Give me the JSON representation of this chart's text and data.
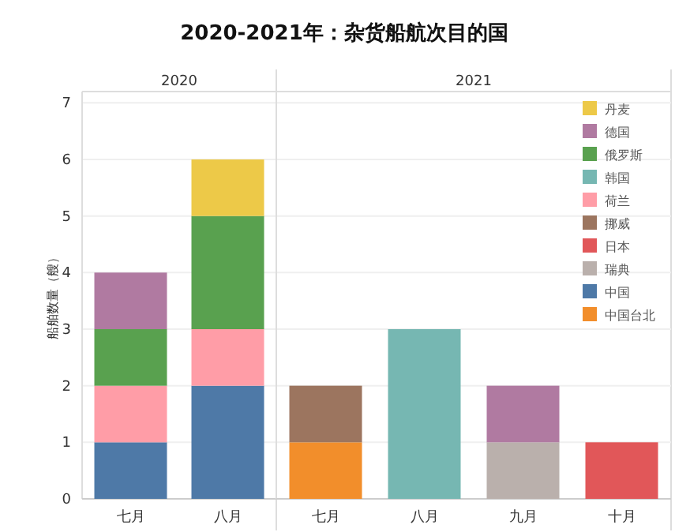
{
  "chart_data": [
    {
      "type": "bar",
      "title": "2020-2021年：杂货船航次目的国",
      "subtitle": "2020",
      "ylabel": "船舶数量（艘）",
      "categories": [
        "七月",
        "八月"
      ],
      "stacked": true,
      "ylim": [
        0,
        7.2
      ],
      "yticks": [
        0,
        1,
        2,
        3,
        4,
        5,
        6,
        7
      ],
      "grid": "y",
      "legend": false,
      "series": [
        {
          "color": "#4e79a7",
          "values": [
            1,
            2
          ]
        },
        {
          "color": "#ff9da7",
          "values": [
            1,
            1
          ]
        },
        {
          "color": "#59a14f",
          "values": [
            1,
            2
          ]
        },
        {
          "color": "#b07aa1",
          "values": [
            1,
            null
          ]
        },
        {
          "color": "#edc948",
          "values": [
            null,
            1
          ]
        }
      ]
    },
    {
      "type": "bar",
      "subtitle": "2021",
      "categories": [
        "七月",
        "八月",
        "九月",
        "十月"
      ],
      "stacked": true,
      "ylim": [
        0,
        7.2
      ],
      "yticks": [
        0,
        1,
        2,
        3,
        4,
        5,
        6,
        7
      ],
      "grid": "y",
      "tick_labels": "x",
      "legend": "top right",
      "series": [
        {
          "name": "中国台北",
          "color": "#f28e2b",
          "values": [
            1,
            null,
            null,
            null
          ]
        },
        {
          "name": "中国",
          "color": "#4e79a7",
          "values": [
            null,
            null,
            null,
            null
          ]
        },
        {
          "name": "瑞典",
          "color": "#bab0ac",
          "values": [
            null,
            null,
            1,
            null
          ]
        },
        {
          "name": "日本",
          "color": "#e15759",
          "values": [
            null,
            null,
            null,
            1
          ]
        },
        {
          "name": "挪威",
          "color": "#9c755f",
          "values": [
            1,
            null,
            null,
            null
          ]
        },
        {
          "name": "荷兰",
          "color": "#ff9da7",
          "values": [
            null,
            null,
            null,
            null
          ]
        },
        {
          "name": "韩国",
          "color": "#76b7b2",
          "values": [
            null,
            3,
            null,
            null
          ]
        },
        {
          "name": "俄罗斯",
          "color": "#59a14f",
          "values": [
            null,
            null,
            null,
            null
          ]
        },
        {
          "name": "德国",
          "color": "#b07aa1",
          "values": [
            null,
            null,
            1,
            null
          ]
        },
        {
          "name": "丹麦",
          "color": "#edc948",
          "values": [
            null,
            null,
            null,
            null
          ]
        }
      ]
    }
  ]
}
